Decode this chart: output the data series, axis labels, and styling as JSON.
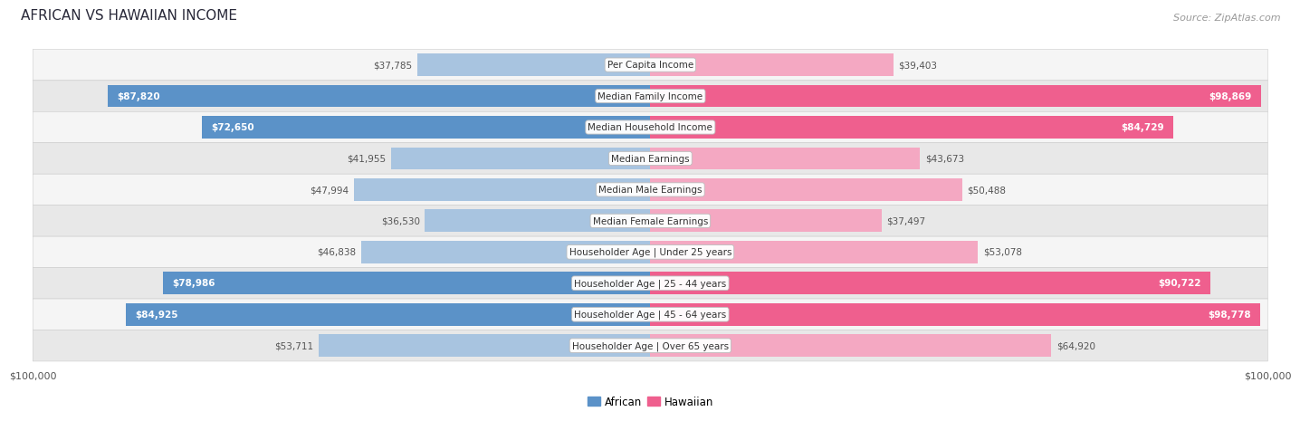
{
  "title": "AFRICAN VS HAWAIIAN INCOME",
  "source": "Source: ZipAtlas.com",
  "categories": [
    "Per Capita Income",
    "Median Family Income",
    "Median Household Income",
    "Median Earnings",
    "Median Male Earnings",
    "Median Female Earnings",
    "Householder Age | Under 25 years",
    "Householder Age | 25 - 44 years",
    "Householder Age | 45 - 64 years",
    "Householder Age | Over 65 years"
  ],
  "african_values": [
    37785,
    87820,
    72650,
    41955,
    47994,
    36530,
    46838,
    78986,
    84925,
    53711
  ],
  "hawaiian_values": [
    39403,
    98869,
    84729,
    43673,
    50488,
    37497,
    53078,
    90722,
    98778,
    64920
  ],
  "african_labels": [
    "$37,785",
    "$87,820",
    "$72,650",
    "$41,955",
    "$47,994",
    "$36,530",
    "$46,838",
    "$78,986",
    "$84,925",
    "$53,711"
  ],
  "hawaiian_labels": [
    "$39,403",
    "$98,869",
    "$84,729",
    "$43,673",
    "$50,488",
    "$37,497",
    "$53,078",
    "$90,722",
    "$98,778",
    "$64,920"
  ],
  "african_color_full": "#5B92C8",
  "african_color_light": "#A8C4E0",
  "hawaiian_color_full": "#EF5F8E",
  "hawaiian_color_light": "#F4A8C2",
  "max_value": 100000,
  "xlabel_left": "$100,000",
  "xlabel_right": "$100,000",
  "background_color": "#ffffff",
  "row_bg_light": "#f5f5f5",
  "row_bg_dark": "#e8e8e8",
  "title_fontsize": 11,
  "source_fontsize": 8,
  "bar_label_fontsize": 7.5,
  "category_fontsize": 7.5,
  "legend_fontsize": 8.5,
  "axis_label_fontsize": 8
}
